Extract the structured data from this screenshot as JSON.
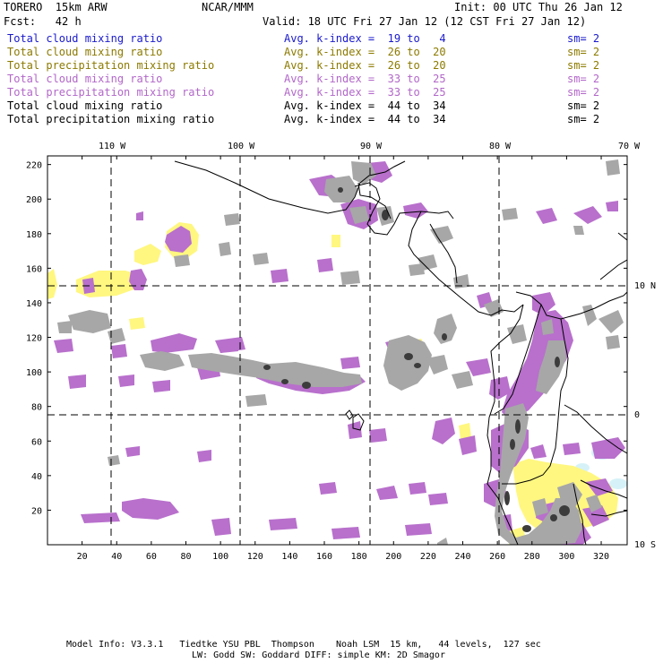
{
  "header": {
    "model_name": "TORERO  15km ARW",
    "center": "NCAR/MMM",
    "init": "Init: 00 UTC Thu 26 Jan 12",
    "forecast": "Fcst:   42 h",
    "valid": "Valid: 18 UTC Fri 27 Jan 12 (12 CST Fri 27 Jan 12)"
  },
  "colors": {
    "blue": "#1a1acc",
    "olive": "#8c7a00",
    "purple": "#b267c9",
    "black": "#000000",
    "yellow_fill": "#fff780",
    "purple_fill": "#b870cc",
    "gray_fill": "#a7a7a7",
    "dark_fill": "#3c3c3c",
    "light_cyan": "#d6f2f8"
  },
  "legend": [
    {
      "field": "Total cloud mixing ratio",
      "stat": "Avg. k-index =  19 to   4",
      "sm": "sm= 2",
      "color": "#1a1acc"
    },
    {
      "field": "Total cloud mixing ratio",
      "stat": "Avg. k-index =  26 to  20",
      "sm": "sm= 2",
      "color": "#8c7a00"
    },
    {
      "field": "Total precipitation mixing ratio",
      "stat": "Avg. k-index =  26 to  20",
      "sm": "sm= 2",
      "color": "#8c7a00"
    },
    {
      "field": "Total cloud mixing ratio",
      "stat": "Avg. k-index =  33 to  25",
      "sm": "sm= 2",
      "color": "#b267c9"
    },
    {
      "field": "Total precipitation mixing ratio",
      "stat": "Avg. k-index =  33 to  25",
      "sm": "sm= 2",
      "color": "#b267c9"
    },
    {
      "field": "Total cloud mixing ratio",
      "stat": "Avg. k-index =  44 to  34",
      "sm": "sm= 2",
      "color": "#000000"
    },
    {
      "field": "Total precipitation mixing ratio",
      "stat": "Avg. k-index =  44 to  34",
      "sm": "sm= 2",
      "color": "#000000"
    }
  ],
  "axes": {
    "lon_labels": [
      "110 W",
      "100 W",
      "90 W",
      "80 W",
      "70 W"
    ],
    "lat_labels": [
      "10 N",
      "0",
      "10 S"
    ],
    "x_grid": [
      "20",
      "40",
      "60",
      "80",
      "100",
      "120",
      "140",
      "160",
      "180",
      "200",
      "220",
      "240",
      "260",
      "280",
      "300",
      "320"
    ],
    "y_grid": [
      "20",
      "40",
      "60",
      "80",
      "100",
      "120",
      "140",
      "160",
      "180",
      "200",
      "220"
    ]
  },
  "footer": {
    "line1": "Model Info: V3.3.1   Tiedtke YSU PBL  Thompson    Noah LSM  15 km,   44 levels,  127 sec",
    "line2": "LW: Godd SW: Goddard DIFF: simple KM: 2D Smagor"
  }
}
